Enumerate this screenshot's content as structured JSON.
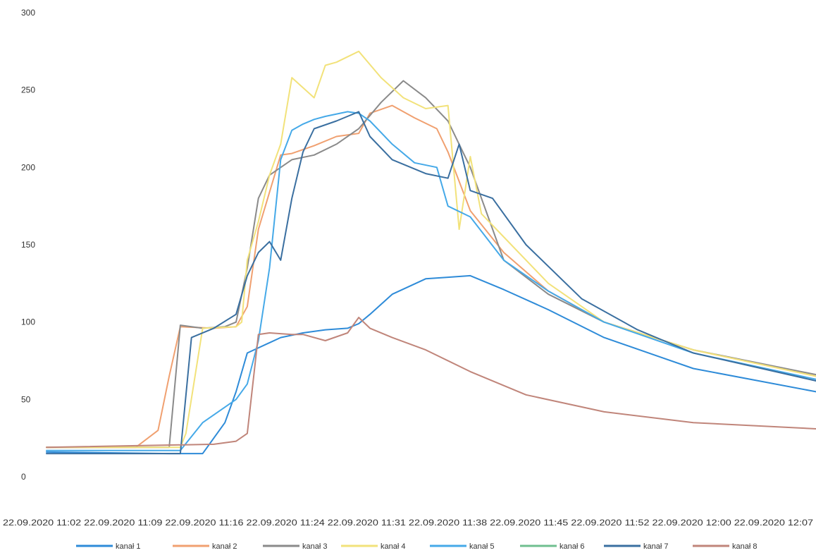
{
  "chart_data": {
    "type": "line",
    "title": "",
    "xlabel": "",
    "ylabel": "",
    "ylim": [
      0,
      300
    ],
    "yticks": [
      "0",
      "50",
      "100",
      "150",
      "200",
      "250",
      "300"
    ],
    "xlim": [
      "22.09.2020 11:02",
      "22.09.2020 12:11"
    ],
    "xtick_labels": [
      "22.09.2020 11:02",
      "22.09.2020 11:09",
      "22.09.2020 11:16",
      "22.09.2020 11:24",
      "22.09.2020 11:31",
      "22.09.2020 11:38",
      "22.09.2020 11:45",
      "22.09.2020 11:52",
      "22.09.2020 12:00",
      "22.09.2020 12:07"
    ],
    "grid": false,
    "legend_position": "bottom",
    "series": [
      {
        "name": "kanał 1",
        "color": "#2e8bd8",
        "x": [
          "11:02",
          "11:13",
          "11:16",
          "11:18",
          "11:19",
          "11:20",
          "11:23",
          "11:25",
          "11:27",
          "11:29",
          "11:30",
          "11:31",
          "11:33",
          "11:36",
          "11:38",
          "11:40",
          "11:43",
          "11:47",
          "11:52",
          "12:00",
          "12:11"
        ],
        "y": [
          16,
          15,
          15,
          35,
          55,
          80,
          90,
          93,
          95,
          96,
          99,
          105,
          118,
          128,
          129,
          130,
          121,
          108,
          90,
          70,
          55
        ]
      },
      {
        "name": "kanał 2",
        "color": "#f0a070",
        "x": [
          "11:02",
          "11:10",
          "11:12",
          "11:13",
          "11:14",
          "11:17",
          "11:19",
          "11:20",
          "11:21",
          "11:23",
          "11:24",
          "11:26",
          "11:28",
          "11:30",
          "11:31",
          "11:33",
          "11:35",
          "11:37",
          "11:38",
          "11:40",
          "11:43",
          "11:47",
          "11:52",
          "12:00",
          "12:11"
        ],
        "y": [
          19,
          19,
          30,
          65,
          97,
          96,
          97,
          110,
          160,
          208,
          209,
          214,
          220,
          222,
          235,
          240,
          232,
          225,
          210,
          172,
          145,
          120,
          100,
          82,
          65
        ]
      },
      {
        "name": "kanał 3",
        "color": "#8a8a8a",
        "x": [
          "11:02",
          "11:13",
          "11:14",
          "11:16",
          "11:18",
          "11:19",
          "11:20",
          "11:21",
          "11:22",
          "11:24",
          "11:26",
          "11:28",
          "11:30",
          "11:32",
          "11:34",
          "11:36",
          "11:38",
          "11:40",
          "11:43",
          "11:47",
          "11:52",
          "12:00",
          "12:11"
        ],
        "y": [
          19,
          19,
          98,
          96,
          97,
          100,
          135,
          180,
          195,
          205,
          208,
          215,
          225,
          242,
          256,
          245,
          230,
          200,
          140,
          118,
          100,
          82,
          66
        ]
      },
      {
        "name": "kanał 4",
        "color": "#f2e27a",
        "x": [
          "11:02",
          "11:14",
          "11:14.5",
          "11:16",
          "11:19",
          "11:19.5",
          "11:20",
          "11:21",
          "11:22",
          "11:23",
          "11:24",
          "11:26",
          "11:27",
          "11:28",
          "11:30",
          "11:32",
          "11:34",
          "11:36",
          "11:38",
          "11:39",
          "11:40",
          "11:41",
          "11:43",
          "11:47",
          "11:52",
          "12:00",
          "12:11"
        ],
        "y": [
          19,
          19,
          28,
          96,
          97,
          100,
          140,
          165,
          195,
          215,
          258,
          245,
          266,
          268,
          275,
          258,
          245,
          238,
          240,
          160,
          207,
          170,
          155,
          125,
          100,
          82,
          65
        ]
      },
      {
        "name": "kanał 5",
        "color": "#45a9e8",
        "x": [
          "11:02",
          "11:14",
          "11:16",
          "11:19",
          "11:20",
          "11:21",
          "11:22",
          "11:23",
          "11:24",
          "11:25",
          "11:26",
          "11:27",
          "11:29",
          "11:30",
          "11:31",
          "11:33",
          "11:35",
          "11:37",
          "11:38",
          "11:40",
          "11:43",
          "11:47",
          "11:52",
          "12:00",
          "12:11"
        ],
        "y": [
          17,
          17,
          35,
          50,
          60,
          88,
          135,
          205,
          224,
          228,
          231,
          233,
          236,
          235,
          230,
          215,
          203,
          200,
          175,
          168,
          140,
          120,
          100,
          80,
          63
        ]
      },
      {
        "name": "kanał 6",
        "color": "#6fbf8f",
        "x": [],
        "y": []
      },
      {
        "name": "kanał 7",
        "color": "#3a6fa0",
        "x": [
          "11:02",
          "11:14",
          "11:15",
          "11:17",
          "11:19",
          "11:20",
          "11:21",
          "11:22",
          "11:23",
          "11:24",
          "11:25",
          "11:26",
          "11:28",
          "11:30",
          "11:31",
          "11:33",
          "11:36",
          "11:38",
          "11:39",
          "11:40",
          "11:42",
          "11:45",
          "11:50",
          "11:55",
          "12:00",
          "12:11"
        ],
        "y": [
          15,
          15,
          90,
          96,
          105,
          130,
          145,
          152,
          140,
          180,
          210,
          225,
          230,
          236,
          220,
          205,
          196,
          193,
          215,
          185,
          180,
          150,
          115,
          95,
          80,
          62
        ]
      },
      {
        "name": "kanał 8",
        "color": "#c0857a",
        "x": [
          "11:02",
          "11:17",
          "11:19",
          "11:20",
          "11:21",
          "11:22",
          "11:24",
          "11:25",
          "11:27",
          "11:29",
          "11:30",
          "11:31",
          "11:33",
          "11:36",
          "11:40",
          "11:45",
          "11:52",
          "12:00",
          "12:11"
        ],
        "y": [
          19,
          21,
          23,
          28,
          92,
          93,
          92,
          92,
          88,
          93,
          103,
          96,
          90,
          82,
          68,
          53,
          42,
          35,
          31
        ]
      }
    ]
  }
}
